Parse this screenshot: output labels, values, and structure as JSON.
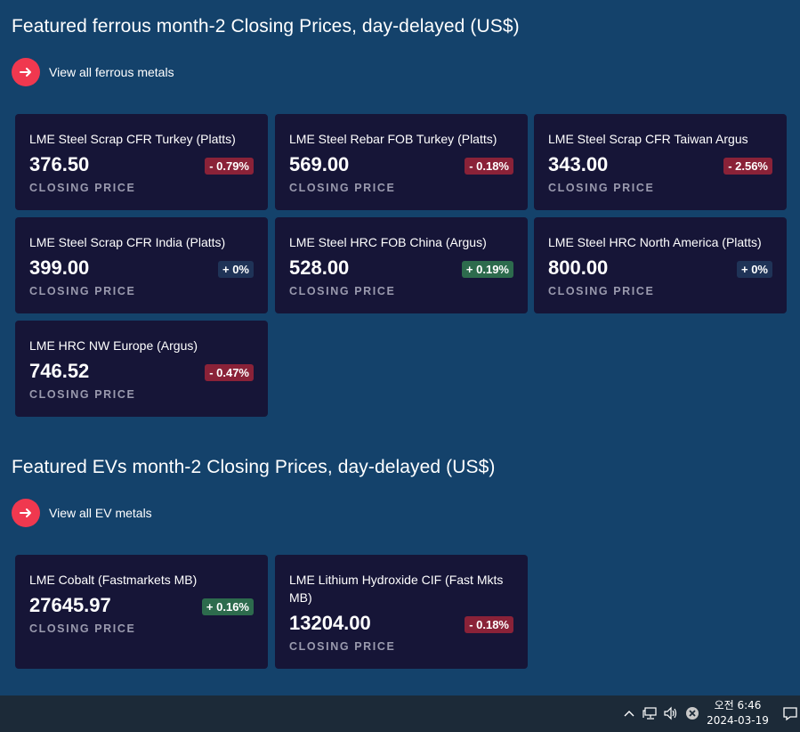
{
  "sections": [
    {
      "title": "Featured ferrous month-2 Closing Prices, day-delayed (US$)",
      "view_all_label": "View all ferrous metals",
      "cards": [
        {
          "name": "LME Steel Scrap CFR Turkey (Platts)",
          "price": "376.50",
          "change": "- 0.79%",
          "direction": "negative",
          "label": "CLOSING PRICE"
        },
        {
          "name": "LME Steel Rebar FOB Turkey (Platts)",
          "price": "569.00",
          "change": "- 0.18%",
          "direction": "negative",
          "label": "CLOSING PRICE"
        },
        {
          "name": "LME Steel Scrap CFR Taiwan Argus",
          "price": "343.00",
          "change": "- 2.56%",
          "direction": "negative",
          "label": "CLOSING PRICE"
        },
        {
          "name": "LME Steel Scrap CFR India (Platts)",
          "price": "399.00",
          "change": "+ 0%",
          "direction": "neutral",
          "label": "CLOSING PRICE"
        },
        {
          "name": "LME Steel HRC FOB China (Argus)",
          "price": "528.00",
          "change": "+ 0.19%",
          "direction": "positive",
          "label": "CLOSING PRICE"
        },
        {
          "name": "LME Steel HRC North America (Platts)",
          "price": "800.00",
          "change": "+ 0%",
          "direction": "neutral",
          "label": "CLOSING PRICE"
        },
        {
          "name": "LME HRC NW Europe (Argus)",
          "price": "746.52",
          "change": "- 0.47%",
          "direction": "negative",
          "label": "CLOSING PRICE"
        }
      ]
    },
    {
      "title": "Featured EVs month-2 Closing Prices, day-delayed (US$)",
      "view_all_label": "View all EV metals",
      "cards": [
        {
          "name": "LME Cobalt (Fastmarkets MB)",
          "price": "27645.97",
          "change": "+ 0.16%",
          "direction": "positive",
          "label": "CLOSING PRICE"
        },
        {
          "name": "LME Lithium Hydroxide CIF (Fast Mkts MB)",
          "price": "13204.00",
          "change": "- 0.18%",
          "direction": "negative",
          "label": "CLOSING PRICE"
        }
      ]
    }
  ],
  "colors": {
    "background": "#14426b",
    "card": "#161537",
    "accent": "#f0384f",
    "negative": "#8a2238",
    "positive": "#2d6b4d",
    "neutral": "#1f3357"
  },
  "taskbar": {
    "icons": [
      "chevron-up-icon",
      "network-icon",
      "volume-icon",
      "close-circle-icon",
      "notification-icon"
    ],
    "clock_time": "오전 6:46",
    "clock_date": "2024-03-19"
  }
}
